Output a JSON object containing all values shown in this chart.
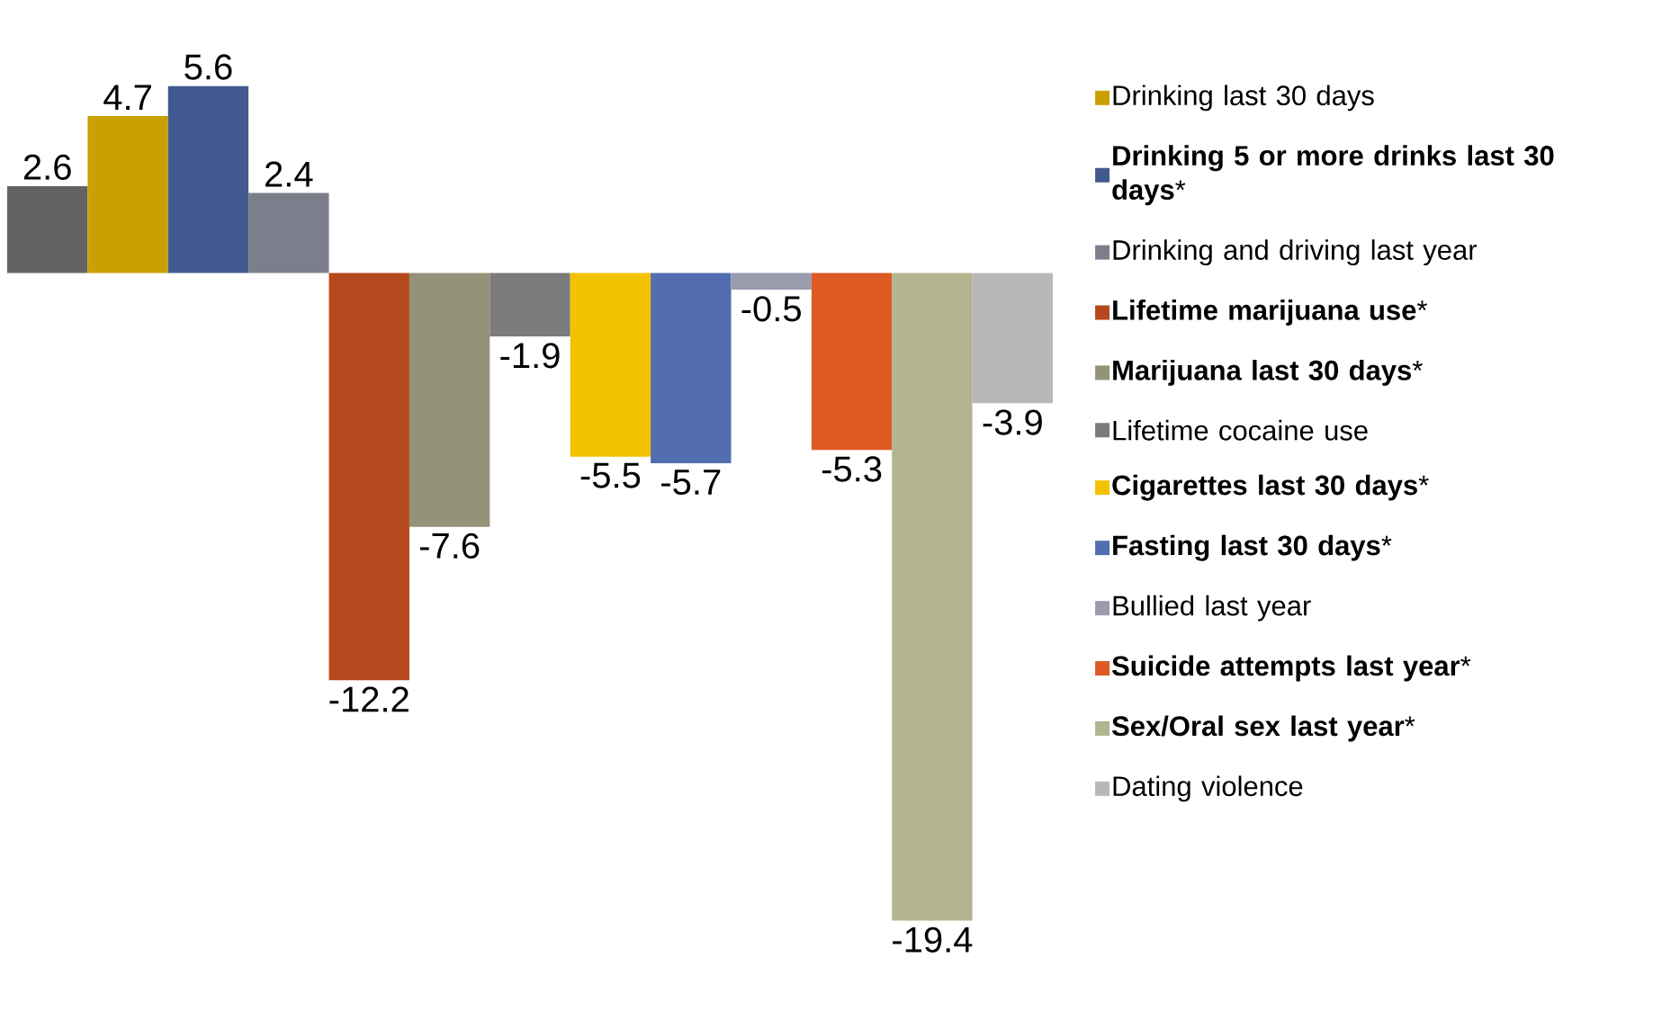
{
  "chart_data": {
    "type": "bar",
    "categories": [
      null
    ],
    "data_labels": true,
    "tick_labels": false,
    "legend": "right",
    "series": [
      {
        "color": "#636363",
        "values": [
          2.6
        ]
      },
      {
        "name": "Drinking last 30 days",
        "color": "#c9a000",
        "values": [
          4.7
        ]
      },
      {
        "name": "**Drinking 5 or more drinks last 30 days***",
        "color": "#42598f",
        "values": [
          5.6
        ]
      },
      {
        "name": "Drinking and driving last year",
        "color": "#7c7e8c",
        "values": [
          2.4
        ]
      },
      {
        "name": "**Lifetime marijuana use***",
        "color": "#b5481c",
        "values": [
          -12.2
        ]
      },
      {
        "name": "**Marijuana last 30 days***",
        "color": "#94937a",
        "values": [
          -7.6
        ]
      },
      {
        "name": "Lifetime cocaine use",
        "color": "#7b7b7b",
        "values": [
          -1.9
        ]
      },
      {
        "name": "**Cigarettes last 30 days***",
        "color": "#f2c200",
        "values": [
          -5.5
        ]
      },
      {
        "name": "**Fasting last 30 days***",
        "color": "#526eb0",
        "values": [
          -5.7
        ]
      },
      {
        "name": "Bullied last year",
        "color": "#9a9bad",
        "values": [
          -0.5
        ]
      },
      {
        "name": "**Suicide attempts last year***",
        "color": "#dd5a24",
        "values": [
          -5.3
        ]
      },
      {
        "name": "**Sex/Oral sex last year***",
        "color": "#b3b490",
        "values": [
          -19.4
        ]
      },
      {
        "name": "Dating violence",
        "color": "#b8b8b8",
        "values": [
          -3.9
        ]
      }
    ]
  }
}
